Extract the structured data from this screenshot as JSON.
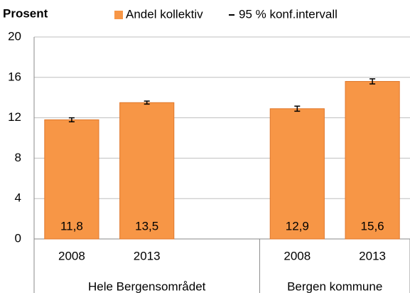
{
  "chart_data": {
    "type": "bar",
    "y_label": "Prosent",
    "groups": [
      {
        "name": "Hele Bergensområdet",
        "categories": [
          "2008",
          "2013",
          null
        ]
      },
      {
        "name": "Bergen kommune",
        "categories": [
          "2008",
          "2013"
        ]
      }
    ],
    "series": [
      {
        "name": "Andel kollektiv",
        "color": "#f79646",
        "values": [
          11.8,
          13.5,
          null,
          12.9,
          15.6
        ],
        "value_labels": [
          "11,8",
          "13,5",
          null,
          "12,9",
          "15,6"
        ]
      }
    ],
    "error_bars": {
      "name": "95 % konf.intervall",
      "values": [
        0.2,
        0.15,
        null,
        0.25,
        0.25
      ]
    },
    "ylim": [
      0,
      20
    ],
    "yticks": [
      0,
      4,
      8,
      12,
      16,
      20
    ],
    "grid": true
  }
}
